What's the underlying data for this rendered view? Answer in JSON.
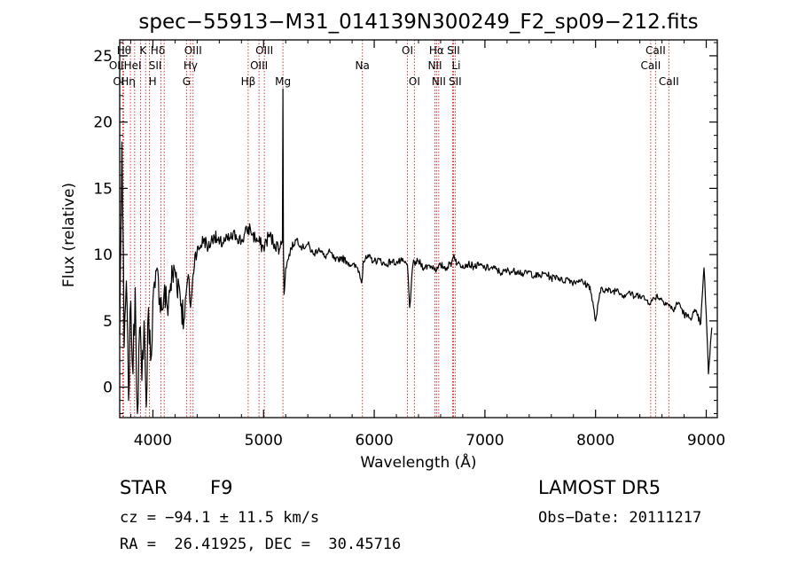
{
  "chart_data": {
    "type": "line",
    "title": "spec−55913−M31_014139N300249_F2_sp09−212.fits",
    "xlabel": "Wavelength (Å)",
    "ylabel": "Flux (relative)",
    "xlim": [
      3700,
      9100
    ],
    "ylim": [
      -2.3,
      26.2
    ],
    "x_ticks": [
      4000,
      5000,
      6000,
      7000,
      8000,
      9000
    ],
    "y_ticks": [
      0,
      5,
      10,
      15,
      20,
      25
    ],
    "grid": false,
    "legend": "none",
    "line_color": "#000000",
    "marker_line_color": "#cc2222",
    "series": [
      {
        "x": [
          3700,
          3720,
          3740,
          3760,
          3780,
          3800,
          3820,
          3840,
          3860,
          3880,
          3900,
          3920,
          3940,
          3960,
          3980,
          4000,
          4020,
          4050,
          4080,
          4100,
          4130,
          4160,
          4200,
          4240,
          4280,
          4300,
          4320,
          4340,
          4380,
          4420,
          4460,
          4500,
          4550,
          4600,
          4650,
          4700,
          4750,
          4800,
          4850,
          4880,
          4900,
          4950,
          5000,
          5050,
          5100,
          5150,
          5170,
          5175,
          5180,
          5185,
          5200,
          5250,
          5300,
          5350,
          5400,
          5450,
          5500,
          5550,
          5600,
          5650,
          5700,
          5750,
          5800,
          5850,
          5890,
          5900,
          5950,
          6000,
          6050,
          6100,
          6150,
          6200,
          6250,
          6300,
          6320,
          6350,
          6400,
          6450,
          6500,
          6550,
          6563,
          6600,
          6650,
          6700,
          6720,
          6750,
          6800,
          6850,
          6900,
          6950,
          7000,
          7050,
          7100,
          7150,
          7200,
          7250,
          7300,
          7350,
          7400,
          7450,
          7500,
          7550,
          7600,
          7650,
          7700,
          7750,
          7800,
          7850,
          7900,
          7950,
          8000,
          8050,
          8100,
          8150,
          8200,
          8250,
          8300,
          8350,
          8400,
          8450,
          8500,
          8550,
          8600,
          8650,
          8700,
          8750,
          8800,
          8850,
          8900,
          8950,
          8980,
          9000,
          9020,
          9050
        ],
        "y": [
          4.0,
          18.5,
          3.0,
          8.0,
          -1.0,
          6.5,
          1.0,
          7.5,
          -2.0,
          4.5,
          0.5,
          5.0,
          -1.5,
          6.0,
          2.0,
          6.5,
          7.5,
          8.2,
          5.8,
          7.0,
          6.0,
          7.8,
          8.8,
          7.5,
          5.0,
          7.0,
          8.5,
          6.0,
          10.0,
          10.5,
          11.2,
          10.5,
          11.5,
          10.8,
          11.0,
          11.2,
          11.5,
          11.0,
          11.8,
          12.0,
          11.5,
          11.0,
          10.5,
          11.5,
          10.8,
          10.5,
          11.0,
          22.5,
          10.2,
          7.0,
          9.0,
          10.5,
          11.2,
          10.5,
          10.8,
          10.0,
          10.5,
          9.8,
          10.2,
          9.5,
          9.8,
          9.5,
          9.2,
          9.0,
          8.0,
          9.5,
          9.8,
          9.5,
          9.6,
          9.2,
          9.5,
          9.4,
          9.5,
          9.2,
          6.0,
          9.3,
          9.5,
          9.0,
          9.2,
          9.0,
          8.8,
          9.2,
          9.0,
          9.4,
          10.0,
          9.3,
          9.2,
          9.3,
          9.1,
          9.2,
          9.0,
          9.0,
          8.9,
          8.6,
          8.8,
          8.7,
          8.8,
          8.5,
          8.7,
          8.4,
          8.4,
          8.6,
          8.2,
          8.4,
          8.0,
          8.2,
          7.9,
          8.1,
          7.8,
          7.6,
          5.0,
          7.5,
          7.3,
          7.2,
          7.4,
          6.9,
          7.2,
          6.8,
          7.0,
          6.6,
          6.4,
          6.9,
          6.6,
          6.3,
          5.8,
          6.4,
          5.5,
          5.2,
          5.7,
          4.8,
          9.0,
          5.5,
          1.0,
          4.5
        ]
      }
    ],
    "line_markers": [
      {
        "name": "OII",
        "x": 3727,
        "row": 1,
        "anchor": "end"
      },
      {
        "name": "OI",
        "x": 3735,
        "row": 2,
        "anchor": "end"
      },
      {
        "name": "Hθ",
        "x": 3797,
        "row": 0,
        "anchor": "end"
      },
      {
        "name": "Hη",
        "x": 3835,
        "row": 2,
        "anchor": "end"
      },
      {
        "name": "HeI",
        "x": 3889,
        "row": 1,
        "anchor": "end"
      },
      {
        "name": "K",
        "x": 3934,
        "row": 0,
        "anchor": "end"
      },
      {
        "name": "H",
        "x": 3969,
        "row": 2,
        "anchor": "start"
      },
      {
        "name": "SII",
        "x": 4072,
        "row": 1,
        "anchor": "end"
      },
      {
        "name": "Hδ",
        "x": 4102,
        "row": 0,
        "anchor": "end"
      },
      {
        "name": "G",
        "x": 4304,
        "row": 2,
        "anchor": "middle"
      },
      {
        "name": "Hγ",
        "x": 4340,
        "row": 1,
        "anchor": "middle"
      },
      {
        "name": "OIII",
        "x": 4363,
        "row": 0,
        "anchor": "middle"
      },
      {
        "name": "Hβ",
        "x": 4861,
        "row": 2,
        "anchor": "middle"
      },
      {
        "name": "OIII",
        "x": 4959,
        "row": 1,
        "anchor": "middle"
      },
      {
        "name": "OIII",
        "x": 5007,
        "row": 0,
        "anchor": "middle"
      },
      {
        "name": "Mg",
        "x": 5175,
        "row": 2,
        "anchor": "middle"
      },
      {
        "name": "Na",
        "x": 5893,
        "row": 1,
        "anchor": "middle"
      },
      {
        "name": "OI",
        "x": 6300,
        "row": 0,
        "anchor": "middle"
      },
      {
        "name": "OI",
        "x": 6363,
        "row": 2,
        "anchor": "middle"
      },
      {
        "name": "NII",
        "x": 6548,
        "row": 1,
        "anchor": "middle"
      },
      {
        "name": "Hα",
        "x": 6563,
        "row": 0,
        "anchor": "middle"
      },
      {
        "name": "NII",
        "x": 6583,
        "row": 2,
        "anchor": "middle"
      },
      {
        "name": "Li",
        "x": 6708,
        "row": 1,
        "anchor": "start"
      },
      {
        "name": "SII",
        "x": 6716,
        "row": 0,
        "anchor": "middle"
      },
      {
        "name": "SII",
        "x": 6731,
        "row": 2,
        "anchor": "middle"
      },
      {
        "name": "CaII",
        "x": 8498,
        "row": 1,
        "anchor": "middle"
      },
      {
        "name": "CaII",
        "x": 8542,
        "row": 0,
        "anchor": "middle"
      },
      {
        "name": "CaII",
        "x": 8662,
        "row": 2,
        "anchor": "middle"
      }
    ]
  },
  "info": {
    "class_label": "STAR",
    "subclass": "F9",
    "survey": "LAMOST DR5",
    "cz": "cz = −94.1 ± 11.5 km/s",
    "obs_date": "Obs−Date: 20111217",
    "radec": "RA =  26.41925, DEC =  30.45716"
  }
}
